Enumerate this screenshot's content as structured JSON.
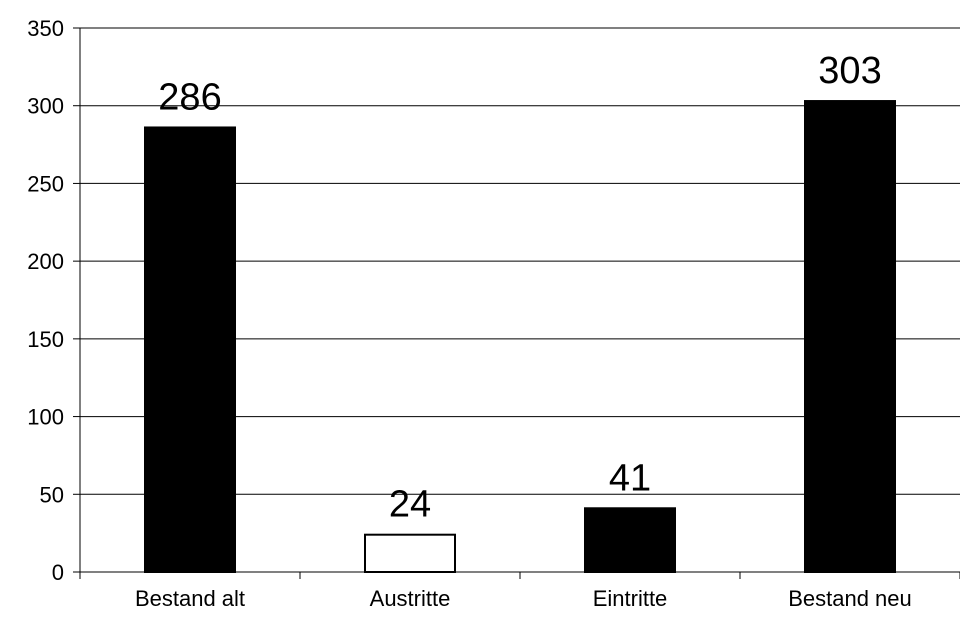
{
  "chart_data": {
    "type": "bar",
    "categories": [
      "Bestand alt",
      "Austritte",
      "Eintritte",
      "Bestand neu"
    ],
    "values": [
      286,
      24,
      41,
      303
    ],
    "data_labels": [
      "286",
      "24",
      "41",
      "303"
    ],
    "bar_fills": [
      "#000000",
      "#ffffff",
      "#000000",
      "#000000"
    ],
    "ylim": [
      0,
      350
    ],
    "yticks": [
      0,
      50,
      100,
      150,
      200,
      250,
      300,
      350
    ],
    "ytick_labels": [
      "0",
      "50",
      "100",
      "150",
      "200",
      "250",
      "300",
      "350"
    ],
    "grid": true,
    "legend": "none",
    "title": "",
    "xlabel": "",
    "ylabel": ""
  }
}
